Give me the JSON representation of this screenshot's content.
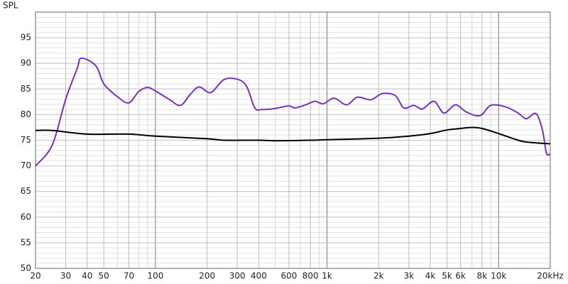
{
  "chart_data": {
    "type": "line",
    "ylabel": "SPL",
    "xscale": "log",
    "grid": true,
    "xlim": [
      20,
      20000
    ],
    "ylim": [
      50,
      100
    ],
    "yticks": [
      50,
      55,
      60,
      65,
      70,
      75,
      80,
      85,
      90,
      95
    ],
    "xticks": [
      20,
      30,
      40,
      50,
      70,
      100,
      200,
      300,
      400,
      600,
      800,
      {
        "value": 1000,
        "label": "1k"
      },
      {
        "value": 2000,
        "label": "2k"
      },
      {
        "value": 3000,
        "label": "3k"
      },
      {
        "value": 4000,
        "label": "4k"
      },
      {
        "value": 5000,
        "label": "5k"
      },
      {
        "value": 6000,
        "label": "6k"
      },
      {
        "value": 8000,
        "label": "8k"
      },
      {
        "value": 10000,
        "label": "10k"
      },
      {
        "value": 20000,
        "label": "20kHz"
      }
    ],
    "series": [
      {
        "color": "#7a2fc0",
        "x": [
          20,
          25,
          30,
          35,
          37,
          45,
          50,
          60,
          70,
          80,
          90,
          100,
          120,
          140,
          160,
          180,
          210,
          250,
          300,
          340,
          380,
          420,
          500,
          600,
          650,
          750,
          850,
          950,
          1100,
          1300,
          1500,
          1800,
          2100,
          2500,
          2800,
          3200,
          3600,
          4200,
          4800,
          5600,
          6500,
          7800,
          9000,
          11000,
          13000,
          14500,
          16500,
          18000,
          19000,
          20000
        ],
        "values": [
          70,
          74,
          83,
          89,
          91,
          89.5,
          86,
          83.5,
          82.3,
          84.5,
          85.3,
          84.6,
          83,
          81.8,
          84,
          85.4,
          84.3,
          86.8,
          86.9,
          85.5,
          81.3,
          81,
          81.2,
          81.7,
          81.3,
          81.9,
          82.6,
          82.1,
          83.2,
          81.9,
          83.4,
          82.9,
          84.1,
          83.7,
          81.3,
          81.8,
          81.1,
          82.6,
          80.3,
          81.9,
          80.5,
          79.8,
          81.8,
          81.5,
          80.3,
          79.2,
          80.2,
          77,
          72.5,
          72.3
        ]
      },
      {
        "color": "#000000",
        "x": [
          20,
          25,
          40,
          70,
          100,
          200,
          250,
          400,
          500,
          800,
          1000,
          2000,
          3000,
          4000,
          5000,
          6000,
          7000,
          8000,
          10000,
          13000,
          15000,
          20000
        ],
        "values": [
          76.9,
          76.9,
          76.2,
          76.2,
          75.8,
          75.3,
          75,
          75,
          74.9,
          75,
          75.1,
          75.4,
          75.8,
          76.3,
          77,
          77.3,
          77.5,
          77.3,
          76.3,
          75,
          74.6,
          74.3
        ]
      }
    ]
  }
}
